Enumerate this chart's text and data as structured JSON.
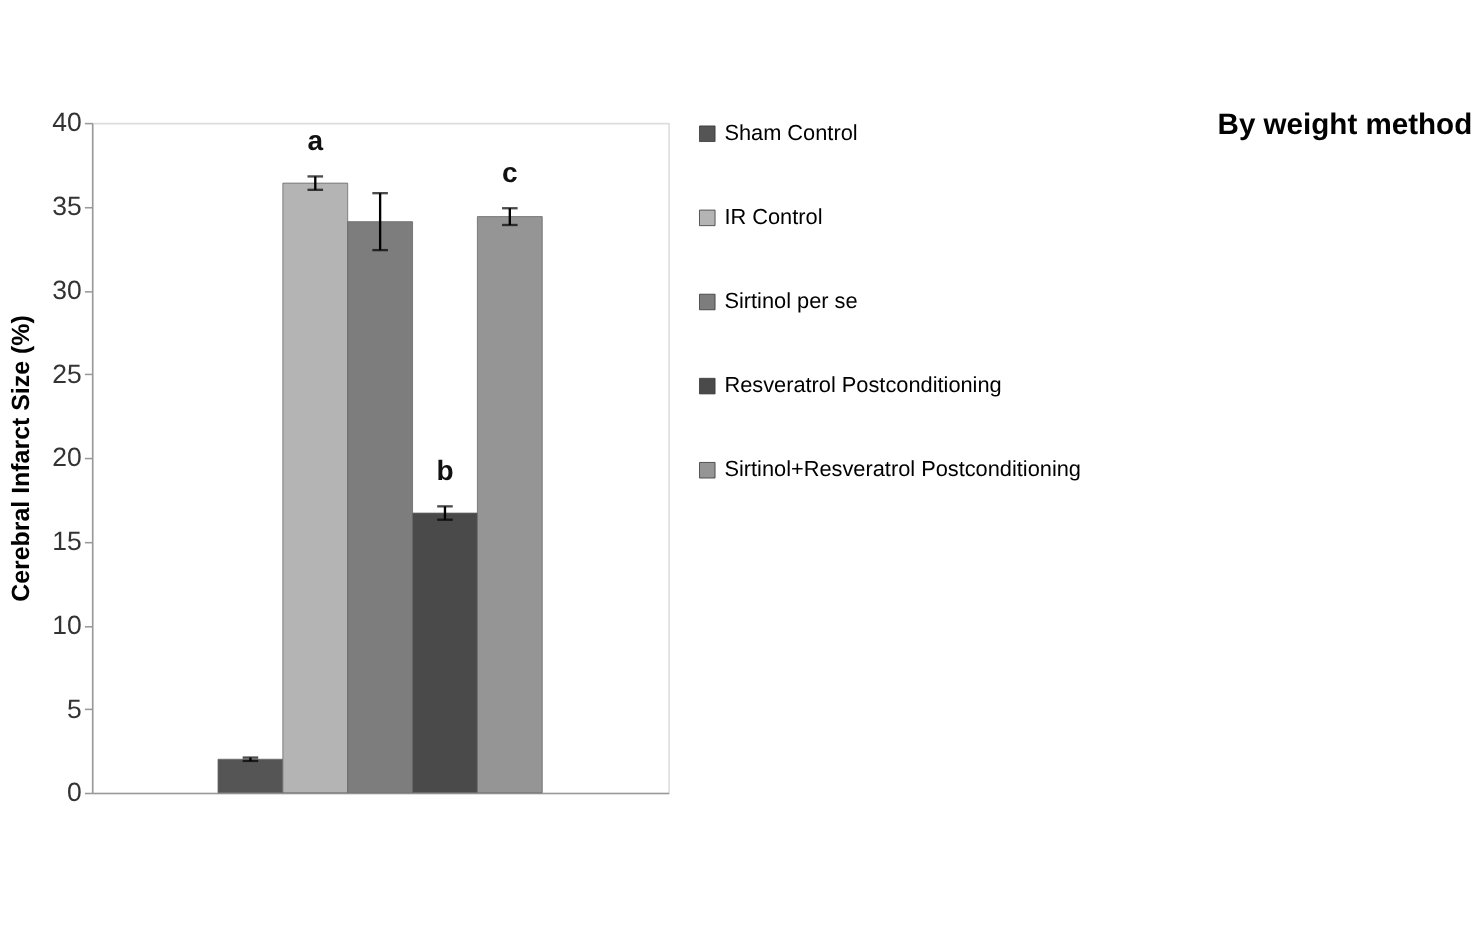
{
  "chart_data": {
    "type": "bar",
    "title": "By weight method",
    "ylabel": "Cerebral Infarct Size (%)",
    "categories": [
      null
    ],
    "series": [
      {
        "name": "Sham Control",
        "color": "#555555",
        "values": [
          2.0
        ],
        "errors": [
          0.1
        ],
        "value_labels": [
          null
        ]
      },
      {
        "name": "IR Control",
        "color": "#b4b4b4",
        "values": [
          36.4
        ],
        "errors": [
          0.4
        ],
        "value_labels": [
          "a"
        ]
      },
      {
        "name": "Sirtinol per se",
        "color": "#7d7d7d",
        "values": [
          34.1
        ],
        "errors": [
          1.7
        ],
        "value_labels": [
          null
        ]
      },
      {
        "name": "Resveratrol Postconditioning",
        "color": "#4a4a4a",
        "values": [
          16.7
        ],
        "errors": [
          0.4
        ],
        "value_labels": [
          "b"
        ]
      },
      {
        "name": "Sirtinol+Resveratrol Postconditioning",
        "color": "#959595",
        "values": [
          34.4
        ],
        "errors": [
          0.5
        ],
        "value_labels": [
          "c"
        ]
      }
    ],
    "ylim": [
      0,
      40
    ],
    "yticks": [
      0,
      5,
      10,
      15,
      20,
      25,
      30,
      35,
      40
    ],
    "grid": false,
    "legend": "right"
  }
}
